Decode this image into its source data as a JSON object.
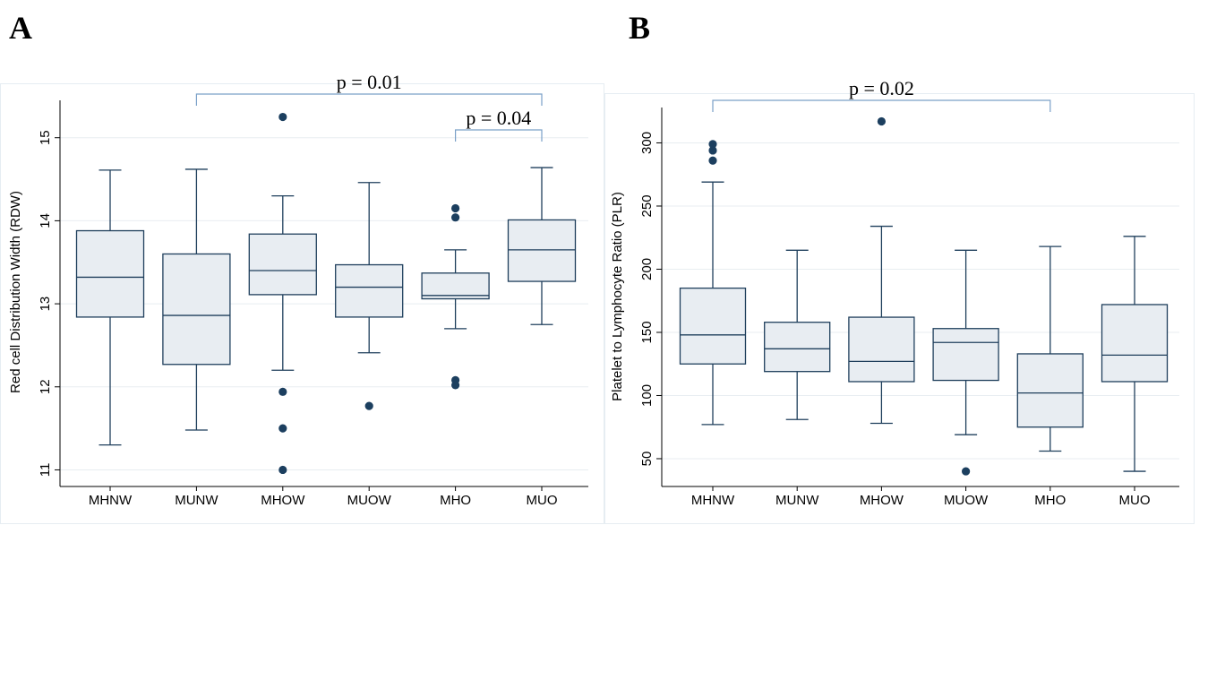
{
  "panels": {
    "a": {
      "letter": "A"
    },
    "b": {
      "letter": "B"
    }
  },
  "colors": {
    "box_fill": "#e8edf2",
    "box_stroke": "#1f3f5c",
    "outlier": "#1c3f5f",
    "grid": "#e8edf1",
    "bracket": "#7aa0c8"
  },
  "chart_data": [
    {
      "type": "box",
      "title": "",
      "xlabel": "",
      "ylabel": "Red cell Distribution Width (RDW)",
      "ylim": [
        10.8,
        15.45
      ],
      "yticks": [
        11,
        12,
        13,
        14,
        15
      ],
      "grid": true,
      "categories": [
        "MHNW",
        "MUNW",
        "MHOW",
        "MUOW",
        "MHO",
        "MUO"
      ],
      "boxes": [
        {
          "category": "MHNW",
          "whisker_low": 11.3,
          "q1": 12.84,
          "median": 13.32,
          "q3": 13.88,
          "whisker_high": 14.61,
          "outliers": []
        },
        {
          "category": "MUNW",
          "whisker_low": 11.48,
          "q1": 12.27,
          "median": 12.86,
          "q3": 13.6,
          "whisker_high": 14.62,
          "outliers": []
        },
        {
          "category": "MHOW",
          "whisker_low": 12.2,
          "q1": 13.11,
          "median": 13.4,
          "q3": 13.84,
          "whisker_high": 14.3,
          "outliers": [
            11.94,
            11.5,
            11.0,
            15.25
          ]
        },
        {
          "category": "MUOW",
          "whisker_low": 12.41,
          "q1": 12.84,
          "median": 13.2,
          "q3": 13.47,
          "whisker_high": 14.46,
          "outliers": [
            11.77
          ]
        },
        {
          "category": "MHO",
          "whisker_low": 12.7,
          "q1": 13.06,
          "median": 13.1,
          "q3": 13.37,
          "whisker_high": 13.65,
          "outliers": [
            12.08,
            12.02,
            14.04,
            14.15
          ]
        },
        {
          "category": "MUO",
          "whisker_low": 12.75,
          "q1": 13.27,
          "median": 13.65,
          "q3": 14.01,
          "whisker_high": 14.64,
          "outliers": []
        }
      ],
      "annotations": [
        {
          "text": "p = 0.01",
          "from": "MUNW",
          "to": "MUO",
          "level": 15.5
        },
        {
          "text": "p = 0.04",
          "from": "MHO",
          "to": "MUO",
          "level": 15.07
        }
      ]
    },
    {
      "type": "box",
      "title": "",
      "xlabel": "",
      "ylabel": "Platelet to Lymphocyte Ratio (PLR)",
      "ylim": [
        28,
        328
      ],
      "yticks": [
        50,
        100,
        150,
        200,
        250,
        300
      ],
      "grid": true,
      "categories": [
        "MHNW",
        "MUNW",
        "MHOW",
        "MUOW",
        "MHO",
        "MUO"
      ],
      "boxes": [
        {
          "category": "MHNW",
          "whisker_low": 77,
          "q1": 125,
          "median": 148,
          "q3": 185,
          "whisker_high": 269,
          "outliers": [
            286,
            294,
            299
          ]
        },
        {
          "category": "MUNW",
          "whisker_low": 81,
          "q1": 119,
          "median": 137,
          "q3": 158,
          "whisker_high": 215,
          "outliers": []
        },
        {
          "category": "MHOW",
          "whisker_low": 78,
          "q1": 111,
          "median": 127,
          "q3": 162,
          "whisker_high": 234,
          "outliers": [
            317
          ]
        },
        {
          "category": "MUOW",
          "whisker_low": 69,
          "q1": 112,
          "median": 142,
          "q3": 153,
          "whisker_high": 215,
          "outliers": [
            40
          ]
        },
        {
          "category": "MHO",
          "whisker_low": 56,
          "q1": 75,
          "median": 102,
          "q3": 133,
          "whisker_high": 218,
          "outliers": []
        },
        {
          "category": "MUO",
          "whisker_low": 40,
          "q1": 111,
          "median": 132,
          "q3": 172,
          "whisker_high": 226,
          "outliers": []
        }
      ],
      "annotations": [
        {
          "text": "p = 0.02",
          "from": "MHNW",
          "to": "MHO",
          "level": 327
        }
      ]
    }
  ]
}
